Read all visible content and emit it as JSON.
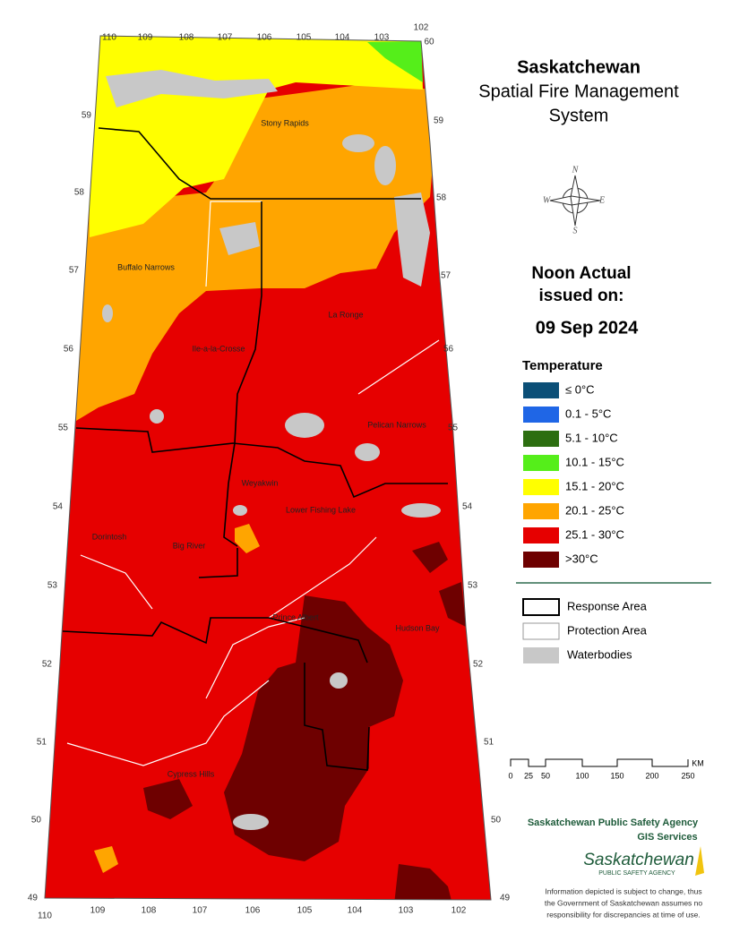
{
  "header": {
    "title": "Saskatchewan",
    "subtitle_1": "Spatial Fire Management",
    "subtitle_2": "System"
  },
  "issue": {
    "line_1": "Noon Actual",
    "line_2": "issued on:",
    "date": "09 Sep 2024"
  },
  "legend": {
    "title": "Temperature",
    "items": [
      {
        "label": "≤ 0°C",
        "color": "#0b4f77"
      },
      {
        "label": "0.1 - 5°C",
        "color": "#1f66e6"
      },
      {
        "label": "5.1 - 10°C",
        "color": "#2c6e10"
      },
      {
        "label": "10.1 - 15°C",
        "color": "#55ee1a"
      },
      {
        "label": "15.1 - 20°C",
        "color": "#ffff00"
      },
      {
        "label": "20.1 - 25°C",
        "color": "#ffa500"
      },
      {
        "label": "25.1 - 30°C",
        "color": "#e60000"
      },
      {
        "label": ">30°C",
        "color": "#6e0000"
      }
    ]
  },
  "boundaries": {
    "items": [
      {
        "label": "Response Area"
      },
      {
        "label": "Protection Area"
      },
      {
        "label": "Waterbodies"
      }
    ]
  },
  "scale": {
    "labels": [
      "0",
      "25",
      "50",
      "100",
      "150",
      "200",
      "250"
    ],
    "unit": "KM"
  },
  "agency": {
    "name": "Saskatchewan Public Safety Agency",
    "unit": "GIS  Services",
    "logo_name": "Saskatchewan",
    "logo_sub": "PUBLIC SAFETY AGENCY"
  },
  "disclaimer": [
    "Information depicted is subject to change, thus",
    "the Government of Saskatchewan assumes no",
    "responsibility for discrepancies at time of use."
  ],
  "places": [
    "Stony Rapids",
    "Buffalo Narrows",
    "La Ronge",
    "Ile-a-la-Crosse",
    "Pelican Narrows",
    "Weyakwin",
    "Lower Fishing Lake",
    "Dorintosh",
    "Big River",
    "Prince Albert",
    "Hudson Bay",
    "Cypress Hills"
  ],
  "graticule": {
    "top": [
      "110",
      "109",
      "108",
      "107",
      "106",
      "105",
      "104",
      "103",
      "102"
    ],
    "top_right": "60",
    "left": [
      "59",
      "58",
      "57",
      "56",
      "55",
      "54",
      "53",
      "52",
      "51",
      "50",
      "49"
    ],
    "right": [
      "59",
      "58",
      "57",
      "56",
      "55",
      "54",
      "53",
      "52",
      "51",
      "50",
      "49"
    ],
    "bottom": [
      "110",
      "109",
      "108",
      "107",
      "106",
      "105",
      "104",
      "103",
      "102"
    ]
  },
  "compass": [
    "N",
    "E",
    "S",
    "W"
  ]
}
